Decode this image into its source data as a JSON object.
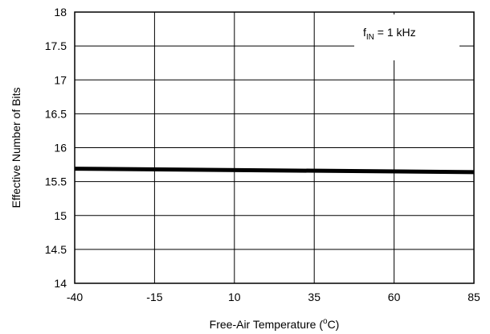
{
  "chart_data": {
    "type": "line",
    "title": "",
    "xlabel": "Free-Air Temperature (",
    "xlabel_sup": "o",
    "xlabel_end": "C)",
    "ylabel": "Effective Number of Bits",
    "xlim": [
      -40,
      85
    ],
    "ylim": [
      14,
      18
    ],
    "xticks": [
      -40,
      -15,
      10,
      35,
      60,
      85
    ],
    "yticks": [
      14,
      14.5,
      15,
      15.5,
      16,
      16.5,
      17,
      17.5,
      18
    ],
    "grid": true,
    "annotation": {
      "prefix": "f",
      "sub": "IN",
      "suffix": " = 1 kHz"
    },
    "series": [
      {
        "color": "#000000",
        "x": [
          -40,
          85
        ],
        "y": [
          15.69,
          15.64
        ]
      }
    ]
  }
}
